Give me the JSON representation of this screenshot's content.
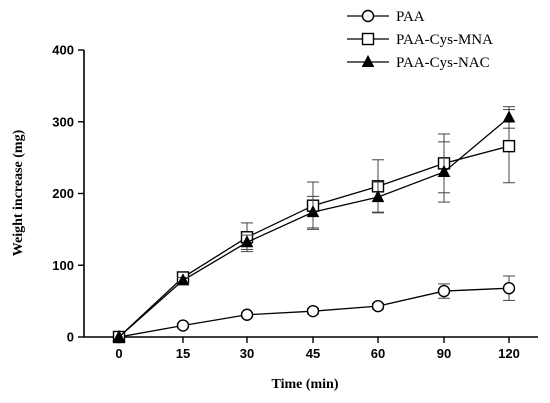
{
  "chart_data": {
    "type": "line",
    "title": "",
    "xlabel": "Time (min)",
    "ylabel": "Weight increase (mg)",
    "x": [
      0,
      15,
      30,
      45,
      60,
      90,
      120
    ],
    "x_tick_labels": [
      "0",
      "15",
      "30",
      "45",
      "60",
      "90",
      "120"
    ],
    "y_ticks": [
      0,
      100,
      200,
      300,
      400
    ],
    "ylim": [
      0,
      400
    ],
    "legend_position": "top-right",
    "grid": false,
    "series": [
      {
        "name": "PAA",
        "marker": "circle-open",
        "values": [
          0,
          16,
          31,
          36,
          43,
          64,
          68
        ],
        "errors": [
          0,
          3,
          3,
          4,
          4,
          10,
          17
        ]
      },
      {
        "name": "PAA-Cys-MNA",
        "marker": "square-open",
        "values": [
          0,
          83,
          139,
          183,
          210,
          242,
          266
        ],
        "errors": [
          0,
          5,
          20,
          33,
          37,
          41,
          51
        ]
      },
      {
        "name": "PAA-Cys-NAC",
        "marker": "triangle-filled",
        "values": [
          0,
          79,
          132,
          174,
          195,
          230,
          306
        ],
        "errors": [
          0,
          4,
          10,
          22,
          21,
          42,
          15
        ]
      }
    ]
  }
}
